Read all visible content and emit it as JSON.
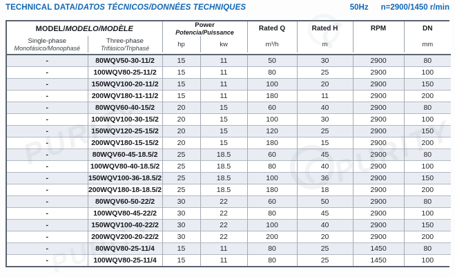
{
  "header": {
    "title_main": "TECHNICAL DATA/",
    "title_sub": "DATOS TÉCNICOS/DONNÉES TECHNIQUES",
    "frequency": "50Hz",
    "speed": "n=2900/1450 r/min"
  },
  "watermark": {
    "text": "PURITY"
  },
  "table": {
    "col_headers": {
      "model_main": "MODEL/",
      "model_sub": "MODELO/MODÈLE",
      "single_phase_en": "Single-phase",
      "single_phase_intl": "Monofásico/Monophasé",
      "three_phase_en": "Three-phase",
      "three_phase_intl": "Trifásico/Triphasé",
      "power_en": "Power",
      "power_intl": "Potencia/Puissance",
      "hp": "hp",
      "kw": "kw",
      "rated_q": "Rated Q",
      "rated_q_unit": "m³/h",
      "rated_h": "Rated H",
      "rated_h_unit": "m",
      "rpm": "RPM",
      "dn": "DN",
      "dn_unit": "mm"
    },
    "rows": [
      {
        "single_phase": "-",
        "three_phase": "80WQV50-30-11/2",
        "hp": "15",
        "kw": "11",
        "rated_q": "50",
        "rated_h": "30",
        "rpm": "2900",
        "dn": "80"
      },
      {
        "single_phase": "-",
        "three_phase": "100WQV80-25-11/2",
        "hp": "15",
        "kw": "11",
        "rated_q": "80",
        "rated_h": "25",
        "rpm": "2900",
        "dn": "100"
      },
      {
        "single_phase": "-",
        "three_phase": "150WQV100-20-11/2",
        "hp": "15",
        "kw": "11",
        "rated_q": "100",
        "rated_h": "20",
        "rpm": "2900",
        "dn": "150"
      },
      {
        "single_phase": "-",
        "three_phase": "200WQV180-11-11/2",
        "hp": "15",
        "kw": "11",
        "rated_q": "180",
        "rated_h": "11",
        "rpm": "2900",
        "dn": "200"
      },
      {
        "single_phase": "-",
        "three_phase": "80WQV60-40-15/2",
        "hp": "20",
        "kw": "15",
        "rated_q": "60",
        "rated_h": "40",
        "rpm": "2900",
        "dn": "80"
      },
      {
        "single_phase": "-",
        "three_phase": "100WQV100-30-15/2",
        "hp": "20",
        "kw": "15",
        "rated_q": "100",
        "rated_h": "30",
        "rpm": "2900",
        "dn": "100"
      },
      {
        "single_phase": "-",
        "three_phase": "150WQV120-25-15/2",
        "hp": "20",
        "kw": "15",
        "rated_q": "120",
        "rated_h": "25",
        "rpm": "2900",
        "dn": "150"
      },
      {
        "single_phase": "-",
        "three_phase": "200WQV180-15-15/2",
        "hp": "20",
        "kw": "15",
        "rated_q": "180",
        "rated_h": "15",
        "rpm": "2900",
        "dn": "200"
      },
      {
        "single_phase": "-",
        "three_phase": "80WQV60-45-18.5/2",
        "hp": "25",
        "kw": "18.5",
        "rated_q": "60",
        "rated_h": "45",
        "rpm": "2900",
        "dn": "80"
      },
      {
        "single_phase": "-",
        "three_phase": "100WQV80-40-18.5/2",
        "hp": "25",
        "kw": "18.5",
        "rated_q": "80",
        "rated_h": "40",
        "rpm": "2900",
        "dn": "100"
      },
      {
        "single_phase": "-",
        "three_phase": "150WQV100-36-18.5/2",
        "hp": "25",
        "kw": "18.5",
        "rated_q": "100",
        "rated_h": "36",
        "rpm": "2900",
        "dn": "150"
      },
      {
        "single_phase": "-",
        "three_phase": "200WQV180-18-18.5/2",
        "hp": "25",
        "kw": "18.5",
        "rated_q": "180",
        "rated_h": "18",
        "rpm": "2900",
        "dn": "200"
      },
      {
        "single_phase": "-",
        "three_phase": "80WQV60-50-22/2",
        "hp": "30",
        "kw": "22",
        "rated_q": "60",
        "rated_h": "50",
        "rpm": "2900",
        "dn": "80"
      },
      {
        "single_phase": "-",
        "three_phase": "100WQV80-45-22/2",
        "hp": "30",
        "kw": "22",
        "rated_q": "80",
        "rated_h": "45",
        "rpm": "2900",
        "dn": "100"
      },
      {
        "single_phase": "-",
        "three_phase": "150WQV100-40-22/2",
        "hp": "30",
        "kw": "22",
        "rated_q": "100",
        "rated_h": "40",
        "rpm": "2900",
        "dn": "150"
      },
      {
        "single_phase": "-",
        "three_phase": "200WQV200-20-22/2",
        "hp": "30",
        "kw": "22",
        "rated_q": "200",
        "rated_h": "20",
        "rpm": "2900",
        "dn": "200"
      },
      {
        "single_phase": "-",
        "three_phase": "80WQV80-25-11/4",
        "hp": "15",
        "kw": "11",
        "rated_q": "80",
        "rated_h": "25",
        "rpm": "1450",
        "dn": "80"
      },
      {
        "single_phase": "-",
        "three_phase": "100WQV80-25-11/4",
        "hp": "15",
        "kw": "11",
        "rated_q": "80",
        "rated_h": "25",
        "rpm": "1450",
        "dn": "100"
      }
    ]
  }
}
